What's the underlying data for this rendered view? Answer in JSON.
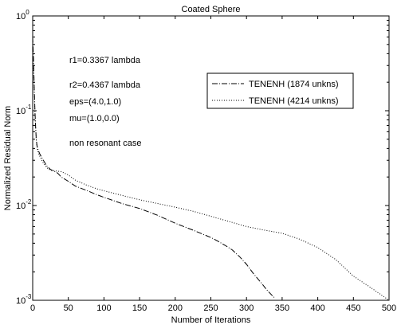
{
  "chart_data": {
    "type": "line",
    "title": "Coated Sphere",
    "xlabel": "Number of Iterations",
    "ylabel": "Normalized Residual Norm",
    "xlim": [
      0,
      500
    ],
    "ylim": [
      0.001,
      1
    ],
    "yscale": "log",
    "grid": false,
    "legend_position": "top-right",
    "x_ticks": [
      0,
      50,
      100,
      150,
      200,
      250,
      300,
      350,
      400,
      450,
      500
    ],
    "x_tick_labels": [
      "0",
      "50",
      "100",
      "150",
      "200",
      "250",
      "300",
      "350",
      "400",
      "450",
      "500"
    ],
    "y_ticks": [
      0.001,
      0.01,
      0.1,
      1
    ],
    "y_tick_labels": [
      {
        "base": "10",
        "exp": "-3"
      },
      {
        "base": "10",
        "exp": "-2"
      },
      {
        "base": "10",
        "exp": "-1"
      },
      {
        "base": "10",
        "exp": "0"
      }
    ],
    "annotations": [
      "r1=0.3367 lambda",
      "r2=0.4367 lambda",
      "eps=(4.0,1.0)",
      "mu=(1.0,0.0)",
      "non resonant case"
    ],
    "series": [
      {
        "name": "TENENH (1874 unkns)",
        "style": "dashdot",
        "x": [
          0,
          1,
          2,
          3,
          4,
          5,
          6,
          7,
          8,
          10,
          15,
          20,
          25,
          30,
          35,
          40,
          50,
          60,
          75,
          90,
          100,
          125,
          150,
          175,
          200,
          225,
          250,
          260,
          270,
          280,
          290,
          300,
          310,
          320,
          330,
          340
        ],
        "y": [
          0.6,
          0.38,
          0.2,
          0.11,
          0.07,
          0.05,
          0.043,
          0.04,
          0.038,
          0.035,
          0.03,
          0.026,
          0.024,
          0.023,
          0.022,
          0.02,
          0.018,
          0.016,
          0.0145,
          0.013,
          0.0122,
          0.0105,
          0.0093,
          0.0079,
          0.0065,
          0.0055,
          0.0046,
          0.0042,
          0.0038,
          0.0034,
          0.0029,
          0.0024,
          0.0019,
          0.00155,
          0.00125,
          0.00105
        ]
      },
      {
        "name": "TENENH (4214 unkns)",
        "style": "dotted",
        "x": [
          0,
          1,
          2,
          3,
          4,
          5,
          6,
          7,
          8,
          10,
          15,
          20,
          25,
          30,
          40,
          50,
          60,
          75,
          90,
          100,
          125,
          150,
          175,
          200,
          225,
          250,
          275,
          300,
          325,
          350,
          375,
          400,
          425,
          450,
          475,
          500
        ],
        "y": [
          0.45,
          0.3,
          0.18,
          0.1,
          0.07,
          0.05,
          0.042,
          0.038,
          0.036,
          0.033,
          0.028,
          0.025,
          0.0235,
          0.0233,
          0.0228,
          0.021,
          0.0185,
          0.0165,
          0.015,
          0.0143,
          0.0128,
          0.0115,
          0.0105,
          0.0096,
          0.0087,
          0.0077,
          0.0068,
          0.006,
          0.0055,
          0.0051,
          0.0044,
          0.0036,
          0.0027,
          0.0018,
          0.00135,
          0.001
        ]
      }
    ]
  }
}
